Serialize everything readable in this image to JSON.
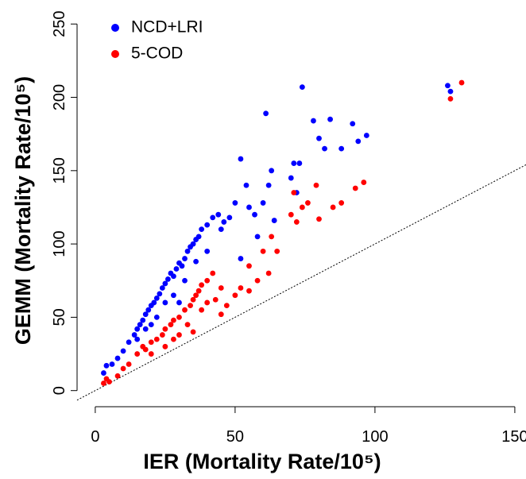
{
  "chart_data": {
    "type": "scatter",
    "x_label": "IER (Mortality Rate/10⁵)",
    "y_label": "GEMM (Mortality Rate/10⁵)",
    "xlim": [
      -6.5,
      154
    ],
    "ylim": [
      -11,
      255
    ],
    "xticks": [
      0,
      50,
      100,
      150
    ],
    "yticks": [
      0,
      50,
      100,
      150,
      200,
      250
    ],
    "legend": "top-left",
    "series": [
      {
        "name": "NCD+LRI",
        "color": "#0000ff",
        "x": [
          3,
          4,
          6,
          8,
          10,
          12,
          14,
          15,
          16,
          17,
          18,
          19,
          20,
          21,
          22,
          23,
          24,
          25,
          26,
          27,
          28,
          29,
          30,
          31,
          32,
          33,
          34,
          35,
          36,
          37,
          38,
          40,
          42,
          44,
          46,
          48,
          50,
          52,
          54,
          55,
          57,
          58,
          60,
          61,
          62,
          63,
          64,
          70,
          71,
          72,
          73,
          74,
          78,
          80,
          82,
          84,
          88,
          92,
          94,
          97,
          126,
          127,
          18,
          22,
          25,
          28,
          15,
          20,
          32,
          36,
          40,
          45,
          52,
          30
        ],
        "values": [
          12,
          17,
          18,
          22,
          27,
          33,
          38,
          42,
          45,
          48,
          52,
          55,
          58,
          60,
          63,
          66,
          70,
          73,
          76,
          80,
          78,
          83,
          87,
          85,
          90,
          95,
          98,
          100,
          103,
          105,
          110,
          113,
          118,
          120,
          115,
          118,
          128,
          158,
          140,
          125,
          120,
          105,
          128,
          189,
          140,
          150,
          116,
          145,
          155,
          135,
          155,
          207,
          184,
          172,
          165,
          185,
          165,
          182,
          170,
          174,
          208,
          204,
          42,
          50,
          60,
          65,
          35,
          45,
          75,
          88,
          95,
          110,
          90,
          60
        ]
      },
      {
        "name": "5-COD",
        "color": "#ff0000",
        "x": [
          3,
          4,
          5,
          8,
          10,
          12,
          15,
          17,
          18,
          20,
          22,
          24,
          25,
          27,
          28,
          30,
          32,
          34,
          35,
          36,
          37,
          38,
          40,
          42,
          38,
          40,
          43,
          45,
          47,
          50,
          52,
          55,
          58,
          60,
          62,
          63,
          65,
          70,
          71,
          72,
          74,
          76,
          79,
          80,
          85,
          88,
          93,
          96,
          127,
          131,
          20,
          25,
          30,
          33,
          45,
          55,
          35,
          28
        ],
        "values": [
          5,
          8,
          6,
          10,
          15,
          18,
          25,
          30,
          28,
          33,
          35,
          38,
          42,
          45,
          48,
          50,
          55,
          58,
          62,
          65,
          68,
          72,
          75,
          80,
          55,
          60,
          62,
          52,
          58,
          65,
          70,
          68,
          75,
          95,
          80,
          105,
          95,
          120,
          135,
          115,
          125,
          128,
          140,
          117,
          125,
          128,
          138,
          142,
          199,
          210,
          25,
          30,
          38,
          45,
          70,
          85,
          40,
          35
        ]
      }
    ]
  }
}
